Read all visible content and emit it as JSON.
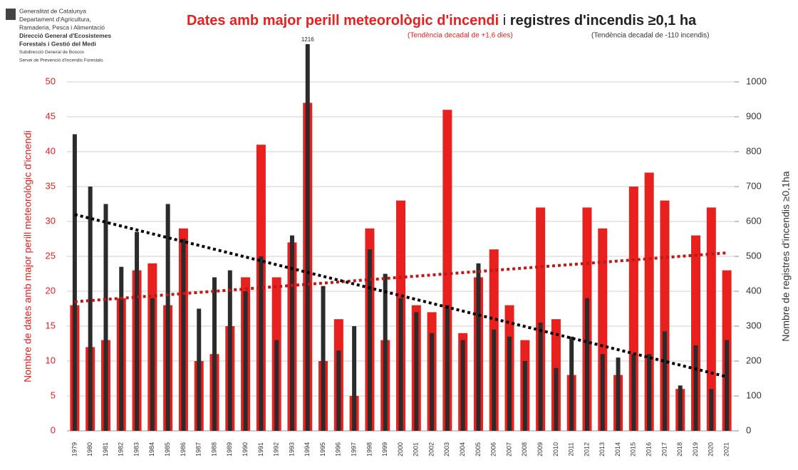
{
  "chart_data": {
    "type": "bar",
    "title": "Dates amb major perill meteorològic d'incendi",
    "title_joiner": "i",
    "title2": "registres d'incendis ≥0,1 ha",
    "subtitle": "(Tendència decadal de +1,6 dies)",
    "subtitle2": "(Tendència decadal de  -110 incendis)",
    "logo_lines": [
      "Generalitat de Catalunya",
      "Departament d'Agricultura,",
      "Ramaderia, Pesca i Alimentació",
      "Direcció General d'Ecosistemes",
      "Forestals i Gestió del Medi",
      "Subdirecció General de Boscos",
      "Servei de Prevenció d'Incendis Forestals"
    ],
    "ylabel": "Nombre de dates amb major perill meteorològic d'icnendi",
    "y2label": "Nombre de registres d'incendis ≥0,1ha",
    "categories": [
      "1979",
      "1980",
      "1981",
      "1982",
      "1983",
      "1984",
      "1985",
      "1986",
      "1987",
      "1988",
      "1989",
      "1990",
      "1991",
      "1992",
      "1993",
      "1994",
      "1995",
      "1996",
      "1997",
      "1998",
      "1999",
      "2000",
      "2001",
      "2002",
      "2003",
      "2004",
      "2005",
      "2006",
      "2007",
      "2008",
      "2009",
      "2010",
      "2011",
      "2012",
      "2013",
      "2014",
      "2015",
      "2016",
      "2017",
      "2018",
      "2019",
      "2020",
      "2021"
    ],
    "series": [
      {
        "color": "#e8201e",
        "axis": "y",
        "trend_color": "#c01818",
        "values": [
          18,
          12,
          13,
          19,
          23,
          24,
          18,
          29,
          10,
          11,
          15,
          22,
          41,
          22,
          27,
          47,
          10,
          16,
          5,
          29,
          13,
          33,
          18,
          17,
          46,
          14,
          22,
          26,
          18,
          13,
          32,
          16,
          8,
          32,
          29,
          8,
          35,
          37,
          33,
          6,
          28,
          32,
          23
        ],
        "trend": [
          18.5,
          25.5
        ]
      },
      {
        "color": "#2b2b2b",
        "axis": "y2",
        "trend_color": "#000000",
        "values": [
          850,
          700,
          650,
          470,
          570,
          380,
          650,
          550,
          350,
          440,
          460,
          400,
          500,
          260,
          560,
          1216,
          415,
          230,
          300,
          520,
          450,
          380,
          340,
          280,
          360,
          260,
          480,
          290,
          270,
          200,
          310,
          180,
          270,
          380,
          220,
          210,
          220,
          220,
          285,
          130,
          245,
          120,
          260
        ],
        "value_labels": [
          null,
          null,
          null,
          null,
          null,
          null,
          null,
          null,
          null,
          null,
          null,
          null,
          null,
          null,
          null,
          "1216",
          null,
          null,
          null,
          null,
          null,
          null,
          null,
          null,
          null,
          null,
          null,
          null,
          null,
          null,
          null,
          null,
          null,
          null,
          null,
          null,
          null,
          null,
          null,
          null,
          null,
          null,
          null
        ],
        "trend": [
          620,
          155
        ]
      }
    ],
    "ylim": [
      0,
      50
    ],
    "yticks": [
      0,
      5,
      10,
      15,
      20,
      25,
      30,
      35,
      40,
      45,
      50
    ],
    "y2lim": [
      0,
      1000
    ],
    "y2ticks": [
      0,
      100,
      200,
      300,
      400,
      500,
      600,
      700,
      800,
      900,
      1000
    ],
    "grid": true
  }
}
